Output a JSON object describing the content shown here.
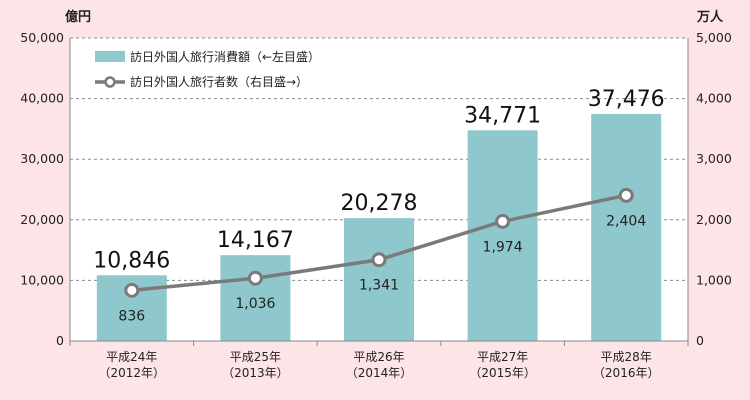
{
  "chart_data": {
    "type": "bar",
    "y_unit_left": "億円",
    "y_unit_right": "万人",
    "y_ticks_left": [
      "0",
      "10,000",
      "20,000",
      "30,000",
      "40,000",
      "50,000"
    ],
    "y_ticks_right": [
      "0",
      "1,000",
      "2,000",
      "3,000",
      "4,000",
      "5,000"
    ],
    "ylim_left": [
      0,
      50000
    ],
    "ylim_right": [
      0,
      5000
    ],
    "grid": true,
    "legend_position": "top-left",
    "categories": [
      {
        "line1": "平成24年",
        "line2": "（2012年）"
      },
      {
        "line1": "平成25年",
        "line2": "（2013年）"
      },
      {
        "line1": "平成26年",
        "line2": "（2014年）"
      },
      {
        "line1": "平成27年",
        "line2": "（2015年）"
      },
      {
        "line1": "平成28年",
        "line2": "（2016年）"
      }
    ],
    "series": [
      {
        "name": "訪日外国人旅行消費額（←左目盛）",
        "type": "bar",
        "axis": "left",
        "color": "#8ec8cc",
        "values": [
          10846,
          14167,
          20278,
          34771,
          37476
        ],
        "labels": [
          "10,846",
          "14,167",
          "20,278",
          "34,771",
          "37,476"
        ]
      },
      {
        "name": "訪日外国人旅行者数（右目盛→）",
        "type": "line",
        "axis": "right",
        "color": "#7a7a7a",
        "values": [
          836,
          1036,
          1341,
          1974,
          2404
        ],
        "labels": [
          "836",
          "1,036",
          "1,341",
          "1,974",
          "2,404"
        ]
      }
    ]
  }
}
